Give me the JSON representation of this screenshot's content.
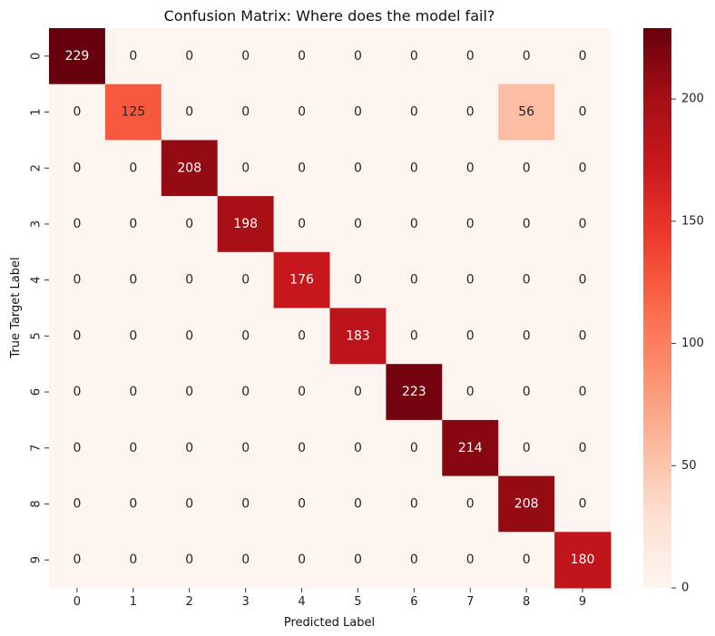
{
  "chart_data": {
    "type": "heatmap",
    "title": "Confusion Matrix: Where does the model fail?",
    "xlabel": "Predicted Label",
    "ylabel": "True Target Label",
    "x_categories": [
      "0",
      "1",
      "2",
      "3",
      "4",
      "5",
      "6",
      "7",
      "8",
      "9"
    ],
    "y_categories": [
      "0",
      "1",
      "2",
      "3",
      "4",
      "5",
      "6",
      "7",
      "8",
      "9"
    ],
    "values": [
      [
        229,
        0,
        0,
        0,
        0,
        0,
        0,
        0,
        0,
        0
      ],
      [
        0,
        125,
        0,
        0,
        0,
        0,
        0,
        0,
        56,
        0
      ],
      [
        0,
        0,
        208,
        0,
        0,
        0,
        0,
        0,
        0,
        0
      ],
      [
        0,
        0,
        0,
        198,
        0,
        0,
        0,
        0,
        0,
        0
      ],
      [
        0,
        0,
        0,
        0,
        176,
        0,
        0,
        0,
        0,
        0
      ],
      [
        0,
        0,
        0,
        0,
        0,
        183,
        0,
        0,
        0,
        0
      ],
      [
        0,
        0,
        0,
        0,
        0,
        0,
        223,
        0,
        0,
        0
      ],
      [
        0,
        0,
        0,
        0,
        0,
        0,
        0,
        214,
        0,
        0
      ],
      [
        0,
        0,
        0,
        0,
        0,
        0,
        0,
        0,
        208,
        0
      ],
      [
        0,
        0,
        0,
        0,
        0,
        0,
        0,
        0,
        0,
        180
      ]
    ],
    "colorbar": {
      "vmin": 0,
      "vmax": 229,
      "ticks": [
        0,
        50,
        100,
        150,
        200
      ],
      "colormap": "Reds",
      "colors": [
        "#fff5f0",
        "#fee0d2",
        "#fcbba1",
        "#fc9272",
        "#fb6a4a",
        "#ef3b2c",
        "#cb181d",
        "#a50f15",
        "#67000d"
      ]
    },
    "grid": false
  }
}
